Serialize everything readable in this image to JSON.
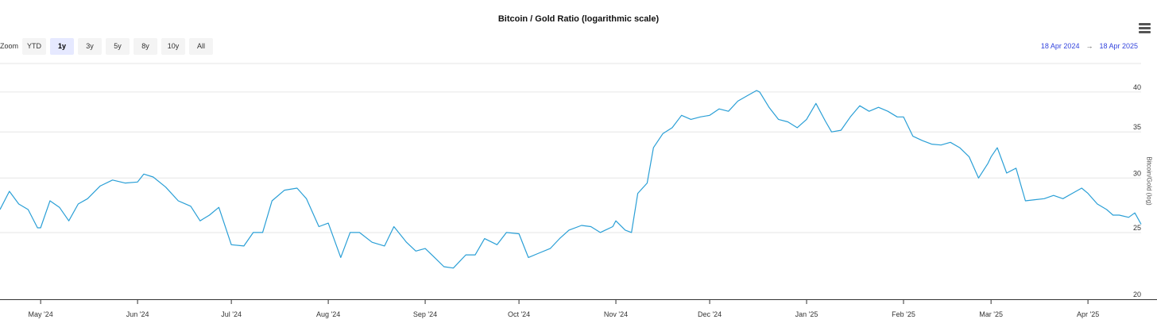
{
  "title": "Bitcoin / Gold Ratio (logarithmic scale)",
  "menu_icon": "hamburger-menu-icon",
  "zoom": {
    "label": "Zoom",
    "buttons": [
      "YTD",
      "1y",
      "3y",
      "5y",
      "8y",
      "10y",
      "All"
    ],
    "active": "1y"
  },
  "range": {
    "from": "18 Apr 2024",
    "arrow": "→",
    "to": "18 Apr 2025"
  },
  "colors": {
    "line": "#2a9fd6",
    "range_text": "#3344dd",
    "active_button": "#e6e9ff"
  },
  "chart_data": {
    "type": "line",
    "title": "Bitcoin / Gold Ratio (logarithmic scale)",
    "ylabel": "Bitcoin/Gold (log)",
    "yscale": "log",
    "ylim": [
      20,
      44
    ],
    "xlim": [
      "2024-04-18",
      "2025-04-18"
    ],
    "yticks": [
      20,
      25,
      30,
      35,
      40
    ],
    "ytick_labels": [
      "20",
      "25",
      "30",
      "35",
      "40"
    ],
    "xticks": [
      "2024-05-01",
      "2024-06-01",
      "2024-07-01",
      "2024-08-01",
      "2024-09-01",
      "2024-10-01",
      "2024-11-01",
      "2024-12-01",
      "2025-01-01",
      "2025-02-01",
      "2025-03-01",
      "2025-04-01"
    ],
    "xtick_labels": [
      "May '24",
      "Jun '24",
      "Jul '24",
      "Aug '24",
      "Sep '24",
      "Oct '24",
      "Nov '24",
      "Dec '24",
      "Jan '25",
      "Feb '25",
      "Mar '25",
      "Apr '25"
    ],
    "grid": "horizontal",
    "series": [
      {
        "color": "#2a9fd6",
        "x": [
          "2024-04-18",
          "2024-04-21",
          "2024-04-24",
          "2024-04-27",
          "2024-04-30",
          "2024-05-01",
          "2024-05-04",
          "2024-05-07",
          "2024-05-10",
          "2024-05-13",
          "2024-05-16",
          "2024-05-20",
          "2024-05-24",
          "2024-05-28",
          "2024-06-01",
          "2024-06-03",
          "2024-06-06",
          "2024-06-10",
          "2024-06-14",
          "2024-06-18",
          "2024-06-21",
          "2024-06-24",
          "2024-06-27",
          "2024-07-01",
          "2024-07-05",
          "2024-07-08",
          "2024-07-11",
          "2024-07-14",
          "2024-07-18",
          "2024-07-22",
          "2024-07-25",
          "2024-07-29",
          "2024-08-01",
          "2024-08-05",
          "2024-08-08",
          "2024-08-11",
          "2024-08-15",
          "2024-08-19",
          "2024-08-22",
          "2024-08-26",
          "2024-08-29",
          "2024-09-01",
          "2024-09-04",
          "2024-09-07",
          "2024-09-10",
          "2024-09-14",
          "2024-09-17",
          "2024-09-20",
          "2024-09-24",
          "2024-09-27",
          "2024-10-01",
          "2024-10-04",
          "2024-10-07",
          "2024-10-11",
          "2024-10-14",
          "2024-10-17",
          "2024-10-21",
          "2024-10-24",
          "2024-10-27",
          "2024-10-31",
          "2024-11-01",
          "2024-11-04",
          "2024-11-06",
          "2024-11-08",
          "2024-11-11",
          "2024-11-13",
          "2024-11-16",
          "2024-11-19",
          "2024-11-22",
          "2024-11-25",
          "2024-11-28",
          "2024-12-01",
          "2024-12-04",
          "2024-12-07",
          "2024-12-10",
          "2024-12-13",
          "2024-12-16",
          "2024-12-17",
          "2024-12-20",
          "2024-12-23",
          "2024-12-26",
          "2024-12-29",
          "2025-01-01",
          "2025-01-04",
          "2025-01-07",
          "2025-01-09",
          "2025-01-12",
          "2025-01-15",
          "2025-01-18",
          "2025-01-21",
          "2025-01-24",
          "2025-01-27",
          "2025-01-30",
          "2025-02-01",
          "2025-02-04",
          "2025-02-07",
          "2025-02-10",
          "2025-02-13",
          "2025-02-16",
          "2025-02-19",
          "2025-02-22",
          "2025-02-25",
          "2025-02-28",
          "2025-03-01",
          "2025-03-03",
          "2025-03-06",
          "2025-03-09",
          "2025-03-12",
          "2025-03-15",
          "2025-03-18",
          "2025-03-21",
          "2025-03-24",
          "2025-03-27",
          "2025-03-30",
          "2025-04-01",
          "2025-04-04",
          "2025-04-07",
          "2025-04-09",
          "2025-04-11",
          "2025-04-14",
          "2025-04-16",
          "2025-04-18"
        ],
        "y": [
          27.0,
          28.7,
          27.5,
          27.0,
          25.4,
          25.4,
          27.8,
          27.2,
          26.0,
          27.5,
          28.0,
          29.2,
          29.8,
          29.5,
          29.6,
          30.4,
          30.1,
          29.1,
          27.8,
          27.3,
          26.0,
          26.5,
          27.2,
          24.0,
          23.9,
          25.0,
          25.0,
          27.8,
          28.8,
          29.0,
          28.0,
          25.5,
          25.8,
          23.0,
          25.0,
          25.0,
          24.2,
          23.9,
          25.5,
          24.2,
          23.5,
          23.7,
          23.0,
          22.3,
          22.2,
          23.2,
          23.2,
          24.5,
          24.0,
          25.0,
          24.9,
          23.0,
          23.3,
          23.7,
          24.5,
          25.2,
          25.6,
          25.5,
          25.0,
          25.5,
          26.0,
          25.2,
          25.0,
          28.5,
          29.5,
          33.2,
          34.8,
          35.5,
          37.0,
          36.5,
          36.8,
          37.0,
          37.8,
          37.5,
          38.8,
          39.5,
          40.2,
          40.0,
          38.0,
          36.5,
          36.2,
          35.5,
          36.5,
          38.5,
          36.3,
          35.0,
          35.2,
          36.8,
          38.2,
          37.5,
          38.0,
          37.5,
          36.8,
          36.8,
          34.5,
          34.0,
          33.6,
          33.5,
          33.8,
          33.2,
          32.2,
          30.0,
          31.5,
          32.2,
          33.2,
          30.5,
          31.0,
          27.8,
          27.9,
          28.0,
          28.3,
          28.0,
          28.5,
          29.0,
          28.5,
          27.5,
          27.0,
          26.5,
          26.5,
          26.3,
          26.7,
          25.7
        ]
      }
    ]
  }
}
